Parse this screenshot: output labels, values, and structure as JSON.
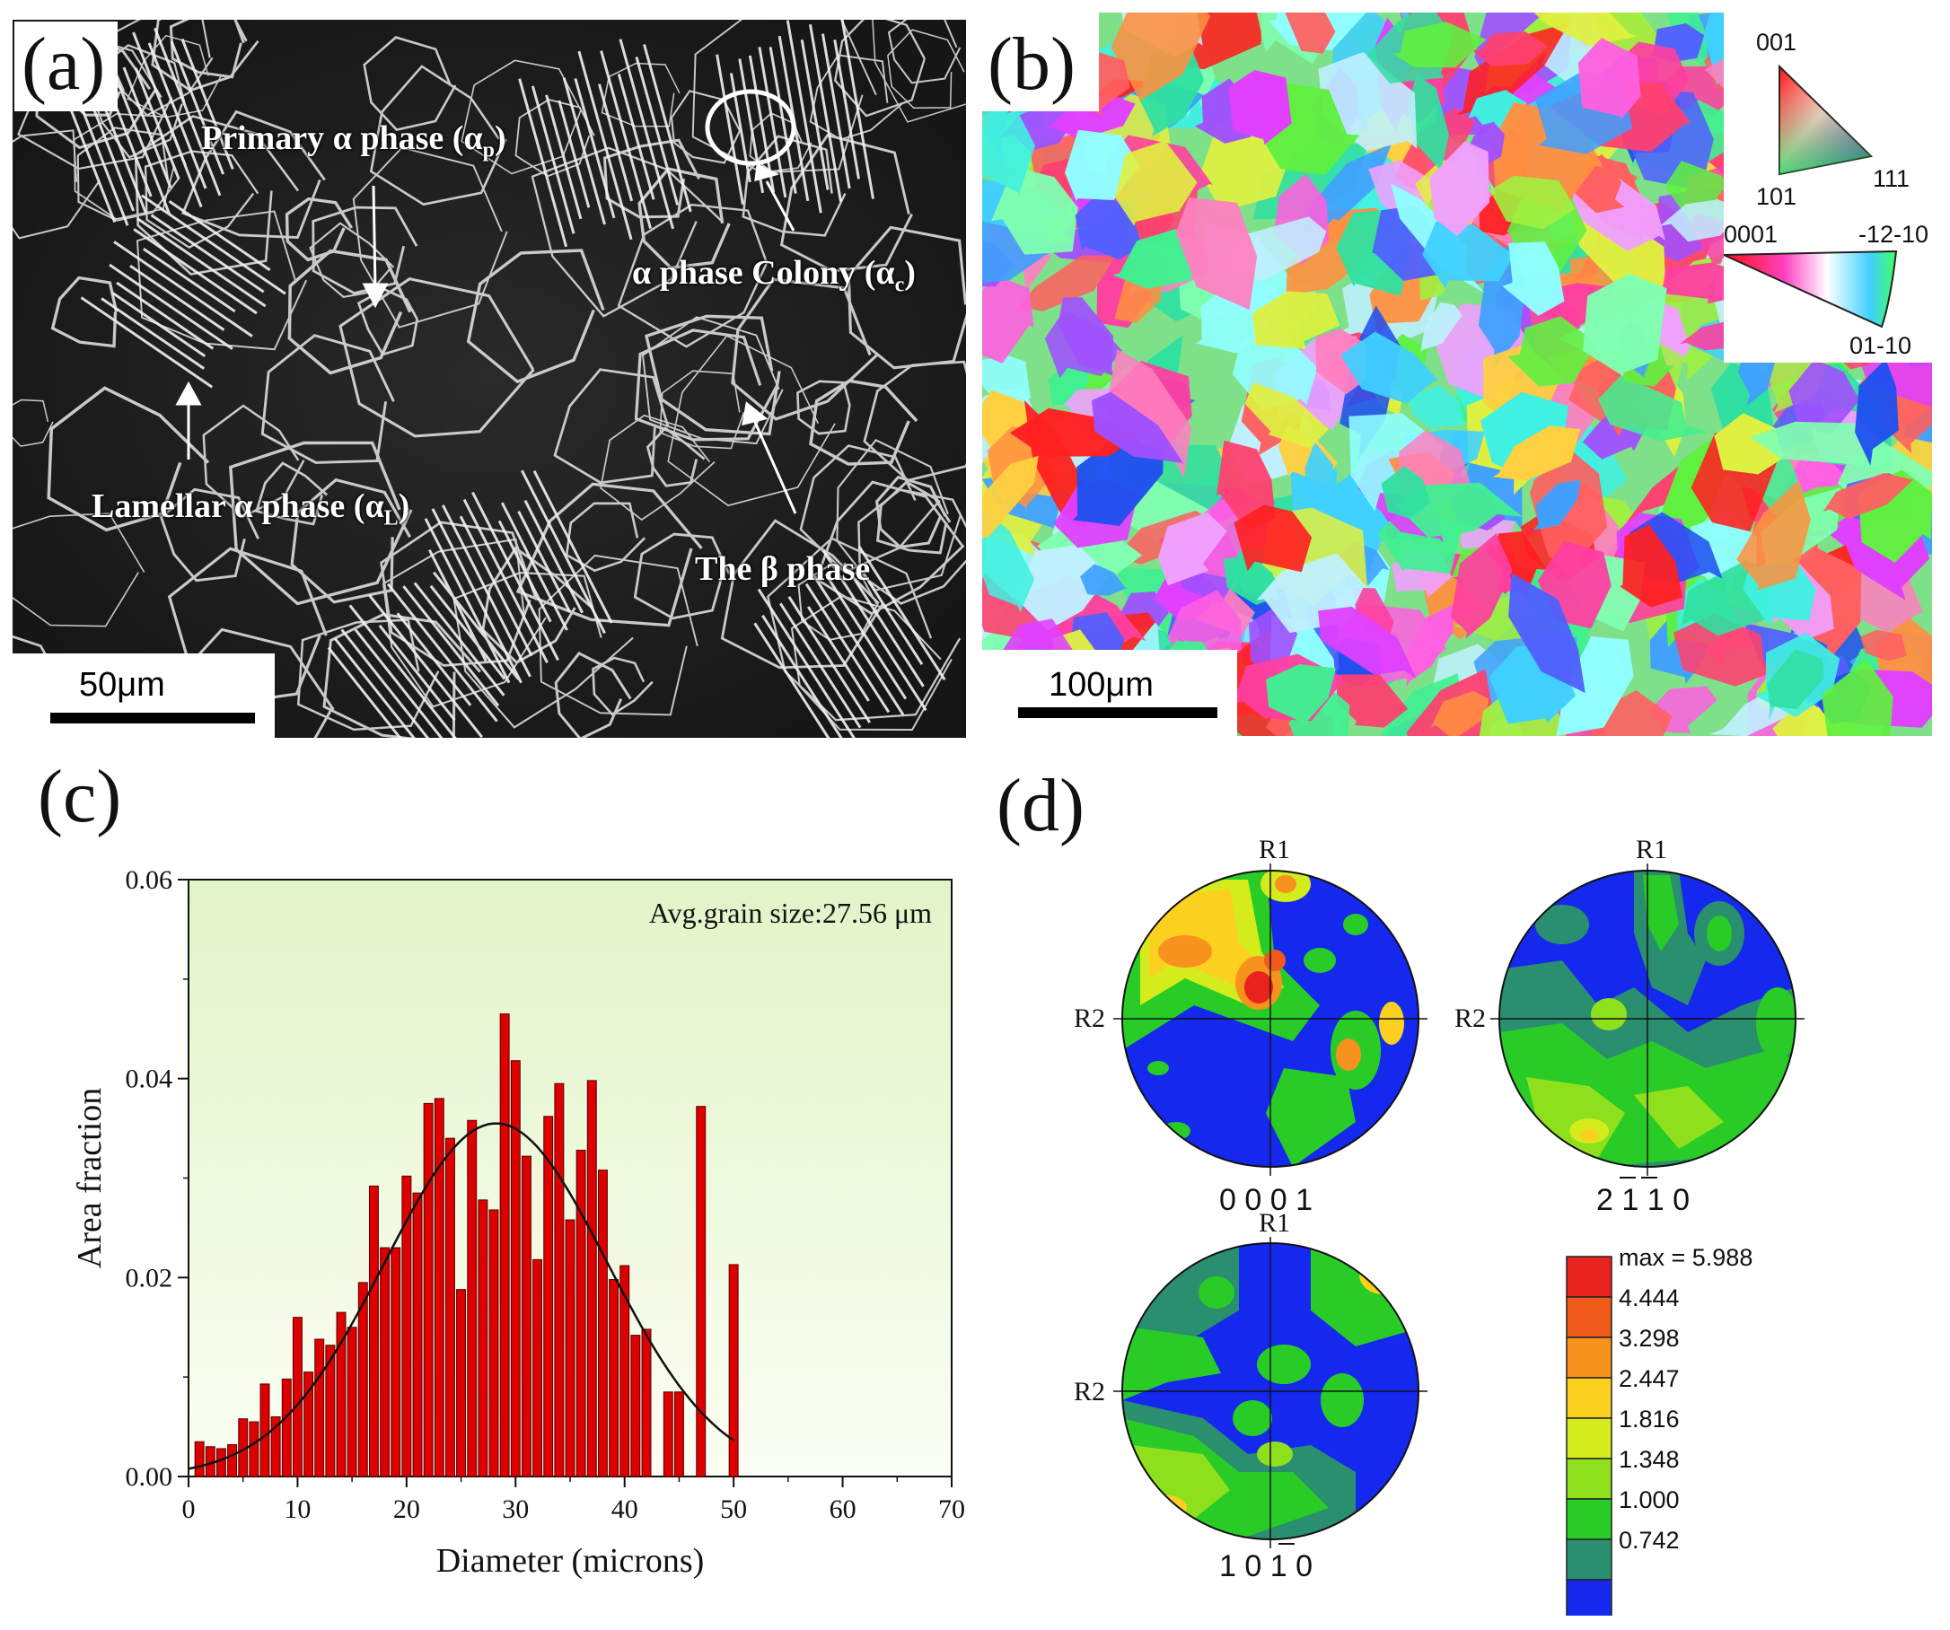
{
  "panels": {
    "a": {
      "label": "(a)",
      "annotations": {
        "primary": "Primary α phase (α",
        "primary_sub": "p",
        "colony": "α phase Colony (α",
        "colony_sub": "c",
        "lamellar": "Lamellar α phase (α",
        "lamellar_sub": "L",
        "beta": "The β phase",
        "close_paren": ")"
      },
      "scale_bar": "50μm"
    },
    "b": {
      "label": "(b)",
      "scale_bar": "100μm",
      "ipf_cubic": {
        "top": "001",
        "left": "101",
        "right": "111"
      },
      "ipf_hex": {
        "left": "0001",
        "right": "-12-10",
        "bottom": "01-10"
      }
    },
    "c": {
      "label": "(c)"
    },
    "d": {
      "label": "(d)",
      "pole_figures": [
        {
          "r1": "R1",
          "r2": "R2",
          "index": "0 0 0 1"
        },
        {
          "r1": "R1",
          "r2": "R2",
          "index": "2 1 1 0"
        },
        {
          "r1": "R1",
          "r2": "R2",
          "index": "1 0 1 0"
        }
      ],
      "legend": {
        "levels": [
          "max = 5.988",
          "4.444",
          "3.298",
          "2.447",
          "1.816",
          "1.348",
          "1.000",
          "0.742"
        ],
        "colors": [
          "#e8231d",
          "#f05a1a",
          "#f7921e",
          "#fcd01e",
          "#d4ec1c",
          "#8fe01c",
          "#29cc26",
          "#2a8f6e",
          "#1428ee"
        ]
      }
    }
  },
  "chart_data": {
    "type": "bar",
    "title": "",
    "xlabel": "Diameter (microns)",
    "ylabel": "Area fraction",
    "xlim": [
      0,
      70
    ],
    "ylim": [
      0,
      0.06
    ],
    "xticks": [
      "0",
      "10",
      "20",
      "30",
      "40",
      "50",
      "60",
      "70"
    ],
    "yticks": [
      "0.00",
      "0.02",
      "0.04",
      "0.06"
    ],
    "annotation": "Avg.grain size:27.56 μm",
    "bar_color": "#dd0000",
    "x": [
      1,
      2,
      3,
      4,
      5,
      6,
      7,
      8,
      9,
      10,
      11,
      12,
      13,
      14,
      15,
      16,
      17,
      18,
      19,
      20,
      21,
      22,
      23,
      24,
      25,
      26,
      27,
      28,
      29,
      30,
      31,
      32,
      33,
      34,
      35,
      36,
      37,
      38,
      39,
      40,
      41,
      42,
      43,
      44,
      45,
      46,
      47,
      48,
      49,
      50
    ],
    "values": [
      0.0035,
      0.003,
      0.0028,
      0.0032,
      0.0058,
      0.0055,
      0.0093,
      0.006,
      0.0098,
      0.016,
      0.0105,
      0.0138,
      0.0132,
      0.0165,
      0.015,
      0.0195,
      0.0292,
      0.023,
      0.023,
      0.0302,
      0.0285,
      0.0375,
      0.038,
      0.034,
      0.0188,
      0.0358,
      0.0278,
      0.0268,
      0.0465,
      0.0418,
      0.0322,
      0.0218,
      0.0362,
      0.0395,
      0.0258,
      0.0328,
      0.0398,
      0.0308,
      0.0198,
      0.0212,
      0.0142,
      0.0148,
      0,
      0.0085,
      0.0085,
      0,
      0.0372,
      0,
      0,
      0.0213
    ],
    "series": [
      {
        "type": "gaussian_fit",
        "mean": 28.2,
        "sigma": 10.2,
        "peak": 0.0355
      }
    ]
  }
}
